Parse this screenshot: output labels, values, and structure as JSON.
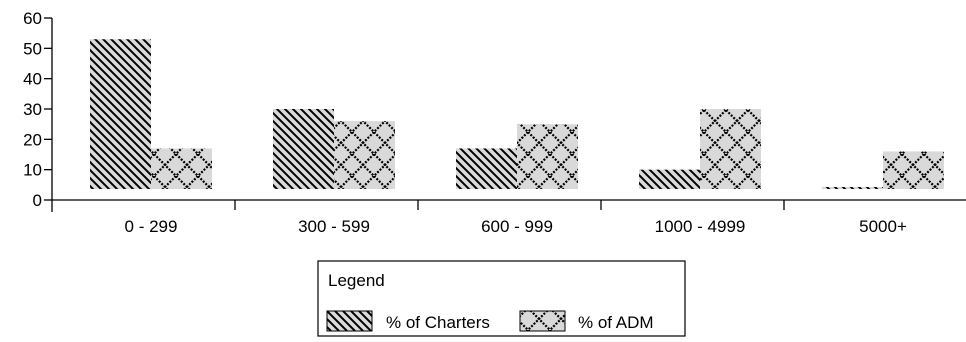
{
  "chart_data": {
    "type": "bar",
    "categories": [
      "0 - 299",
      "300 - 599",
      "600 - 999",
      "1000 - 4999",
      "5000+"
    ],
    "series": [
      {
        "name": "% of Charters",
        "values": [
          53,
          30,
          17,
          10,
          1
        ],
        "pattern": "diagonal-hatch"
      },
      {
        "name": "% of ADM",
        "values": [
          17,
          26,
          25,
          30,
          16
        ],
        "pattern": "crosshatch-diamond"
      }
    ],
    "title": "",
    "xlabel": "",
    "ylabel": "",
    "ylim": [
      0,
      60
    ],
    "yticks": [
      "0",
      "10",
      "20",
      "30",
      "40",
      "50",
      "60"
    ],
    "grid": false,
    "legend": {
      "title": "Legend",
      "placement": "bottom-center"
    },
    "colors": {
      "bar_fill": "#d9d9d9",
      "pattern": "#000000",
      "axis": "#000000"
    }
  }
}
